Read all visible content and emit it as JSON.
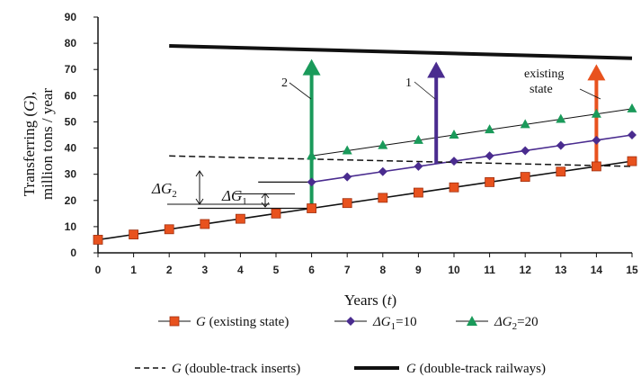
{
  "chart_data": {
    "type": "line",
    "title": "",
    "xlabel_main": "Years (",
    "xlabel_var": "t",
    "xlabel_end": ")",
    "ylabel": {
      "line1_pre": "Transferring (",
      "line1_var": "G",
      "line1_post": "),",
      "line2": "million tons / year"
    },
    "xlim": [
      0,
      15
    ],
    "ylim": [
      0,
      90
    ],
    "x_ticks": [
      "0",
      "1",
      "2",
      "3",
      "4",
      "5",
      "6",
      "7",
      "8",
      "9",
      "10",
      "11",
      "12",
      "13",
      "14",
      "15"
    ],
    "y_ticks": [
      "0",
      "10",
      "20",
      "30",
      "40",
      "50",
      "60",
      "70",
      "80",
      "90"
    ],
    "series": [
      {
        "key": "existing",
        "name_var": "G",
        "name_rest": " (existing state)",
        "color": "#e8521e",
        "marker": "square",
        "x": [
          0,
          1,
          2,
          3,
          4,
          5,
          6,
          7,
          8,
          9,
          10,
          11,
          12,
          13,
          14,
          15
        ],
        "y": [
          5,
          7,
          9,
          11,
          13,
          15,
          17,
          19,
          21,
          23,
          25,
          27,
          29,
          31,
          33,
          35
        ]
      },
      {
        "key": "dg1",
        "name_var": "ΔG",
        "name_sub": "1",
        "name_rest": "=10",
        "color": "#4a2c8f",
        "marker": "diamond",
        "x": [
          6,
          7,
          8,
          9,
          10,
          11,
          12,
          13,
          14,
          15
        ],
        "y": [
          27,
          29,
          31,
          33,
          35,
          37,
          39,
          41,
          43,
          45
        ]
      },
      {
        "key": "dg2",
        "name_var": "ΔG",
        "name_sub": "2",
        "name_rest": "=20",
        "color": "#1a9a5a",
        "marker": "triangle",
        "x": [
          6,
          7,
          8,
          9,
          10,
          11,
          12,
          13,
          14,
          15
        ],
        "y": [
          37,
          39,
          41,
          43,
          45,
          47,
          49,
          51,
          53,
          55
        ]
      },
      {
        "key": "inserts",
        "name_var": "G",
        "name_rest": " (double-track inserts)",
        "color": "#111111",
        "style": "dashed",
        "x": [
          2,
          15
        ],
        "y": [
          37,
          33
        ]
      },
      {
        "key": "railways",
        "name_var": "G",
        "name_rest": " (double-track railways)",
        "color": "#111111",
        "style": "thick",
        "x": [
          2,
          15
        ],
        "y": [
          79,
          74.3
        ]
      }
    ],
    "arrows": [
      {
        "label": "2",
        "x": 6,
        "y_from": 17,
        "y_to": 74,
        "color": "#1a9a5a"
      },
      {
        "label": "1",
        "x": 9.5,
        "y_from": 34,
        "y_to": 73,
        "color": "#4a2c8f"
      },
      {
        "label": "existing state",
        "x": 14,
        "y_from": 33,
        "y_to": 72,
        "color": "#e8521e"
      }
    ],
    "annotations": {
      "dg1_var": "ΔG",
      "dg1_sub": "1",
      "dg2_var": "ΔG",
      "dg2_sub": "2",
      "arrow_label_2": "2",
      "arrow_label_1": "1",
      "existing_line1": "existing",
      "existing_line2": "state"
    },
    "grid": false,
    "legend_position": "bottom"
  }
}
